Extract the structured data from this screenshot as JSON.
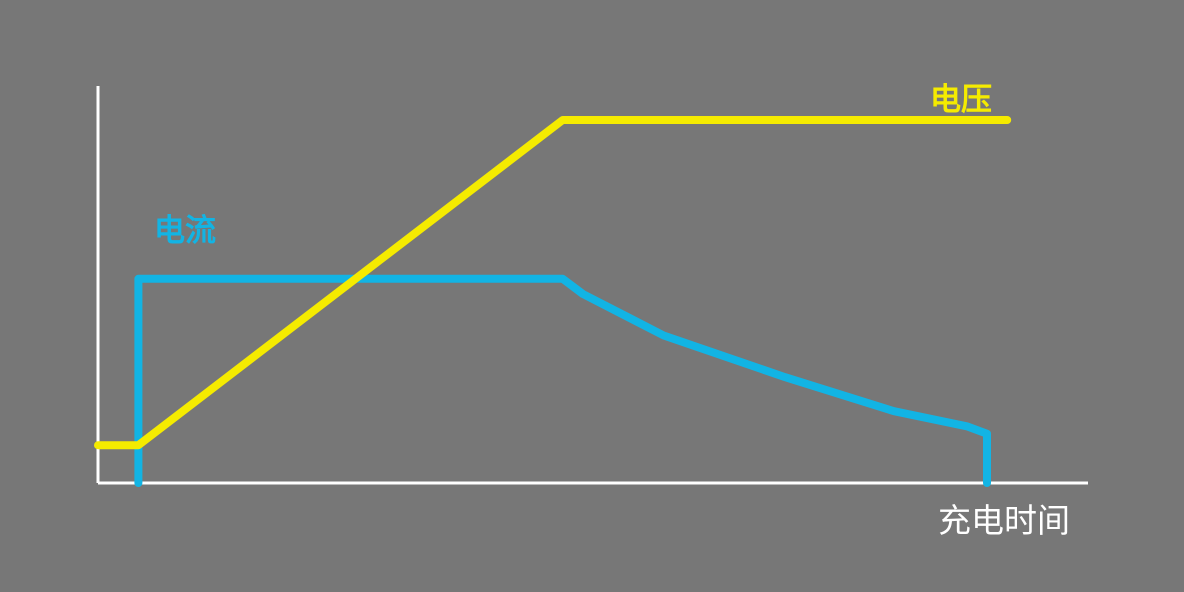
{
  "chart_data": {
    "type": "line",
    "xlabel": "充电时间",
    "ylabel": "",
    "grid": false,
    "x": [
      0,
      1,
      5,
      6,
      11.5,
      14,
      17,
      19.7,
      21.5,
      22,
      22.5
    ],
    "series": [
      {
        "name": "电压",
        "color": "#f5eb00",
        "values": [
          1.0,
          1.0,
          null,
          null,
          9.6,
          null,
          null,
          null,
          null,
          null,
          9.6
        ],
        "points": [
          [
            0,
            1.0
          ],
          [
            1,
            1.0
          ],
          [
            11.5,
            9.6
          ],
          [
            22.5,
            9.6
          ]
        ]
      },
      {
        "name": "电流",
        "color": "#12b4e4",
        "points": [
          [
            1,
            0
          ],
          [
            1,
            5.4
          ],
          [
            11.5,
            5.4
          ],
          [
            12,
            5.0
          ],
          [
            14,
            3.9
          ],
          [
            17,
            2.8
          ],
          [
            19.7,
            1.9
          ],
          [
            21.5,
            1.5
          ],
          [
            22,
            1.3
          ],
          [
            22,
            0
          ]
        ]
      }
    ],
    "xlim": [
      0,
      24.5
    ],
    "ylim": [
      0,
      10.5
    ],
    "axis_color": "#ffffff"
  }
}
